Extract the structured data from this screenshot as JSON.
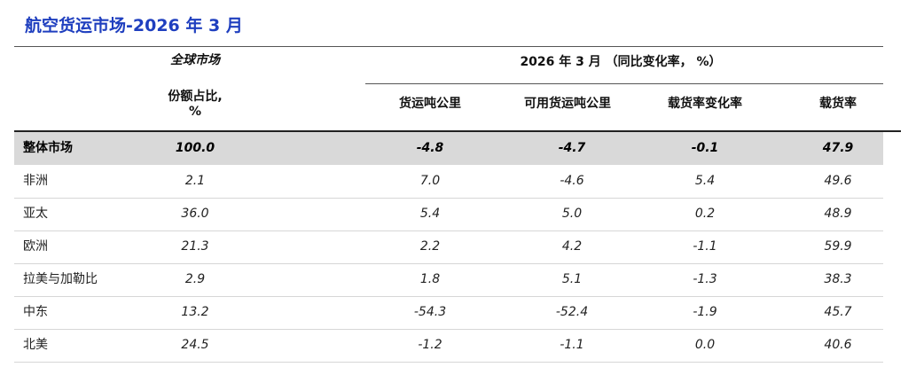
{
  "title": "航空货运市场-2026 年 3 月",
  "header": {
    "group_left": "全球市场",
    "group_right": "2026 年 3 月 （同比变化率， %）",
    "share_line1": "份额占比,",
    "share_line2": "%",
    "col_ctk": "货运吨公里",
    "col_actk": "可用货运吨公里",
    "col_lf_change": "载货率变化率",
    "col_lf": "载货率"
  },
  "rows": [
    {
      "region": "整体市场",
      "share": "100.0",
      "ctk": "-4.8",
      "actk": "-4.7",
      "lf_change": "-0.1",
      "lf": "47.9"
    },
    {
      "region": "非洲",
      "share": "2.1",
      "ctk": "7.0",
      "actk": "-4.6",
      "lf_change": "5.4",
      "lf": "49.6"
    },
    {
      "region": "亚太",
      "share": "36.0",
      "ctk": "5.4",
      "actk": "5.0",
      "lf_change": "0.2",
      "lf": "48.9"
    },
    {
      "region": "欧洲",
      "share": "21.3",
      "ctk": "2.2",
      "actk": "4.2",
      "lf_change": "-1.1",
      "lf": "59.9"
    },
    {
      "region": "拉美与加勒比",
      "share": "2.9",
      "ctk": "1.8",
      "actk": "5.1",
      "lf_change": "-1.3",
      "lf": "38.3"
    },
    {
      "region": "中东",
      "share": "13.2",
      "ctk": "-54.3",
      "actk": "-52.4",
      "lf_change": "-1.9",
      "lf": "45.7"
    },
    {
      "region": "北美",
      "share": "24.5",
      "ctk": "-1.2",
      "actk": "-1.1",
      "lf_change": "0.0",
      "lf": "40.6"
    }
  ]
}
